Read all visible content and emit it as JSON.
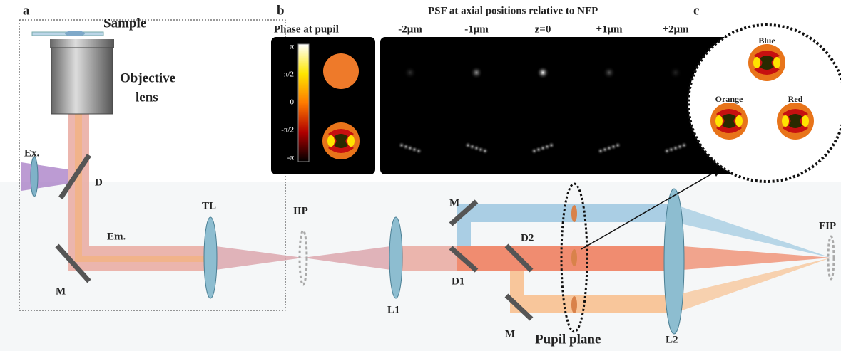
{
  "panel_a": {
    "label": "a",
    "sample": "Sample",
    "objective": [
      "Objective",
      "lens"
    ],
    "excitation": "Ex.",
    "dichroic": "D",
    "mirror": "M",
    "emission": "Em.",
    "tube_lens": "TL",
    "iip": "IIP",
    "l1": "L1",
    "mirror_top": "M",
    "d2": "D2",
    "d1": "D1",
    "mirror_bottom": "M",
    "pupil_plane": "Pupil plane",
    "l2": "L2",
    "fip": "FIP"
  },
  "panel_b": {
    "label": "b",
    "phase_title": "Phase at pupil",
    "colorbar_ticks": [
      "π",
      "π/2",
      "0",
      "-π/2",
      "-π"
    ],
    "psf_title": "PSF at axial positions relative to NFP",
    "positions": [
      "-2μm",
      "-1μm",
      "z=0",
      "+1μm",
      "+2μm"
    ]
  },
  "panel_c": {
    "label": "c",
    "channels": [
      "Blue",
      "Orange",
      "Red"
    ]
  }
}
